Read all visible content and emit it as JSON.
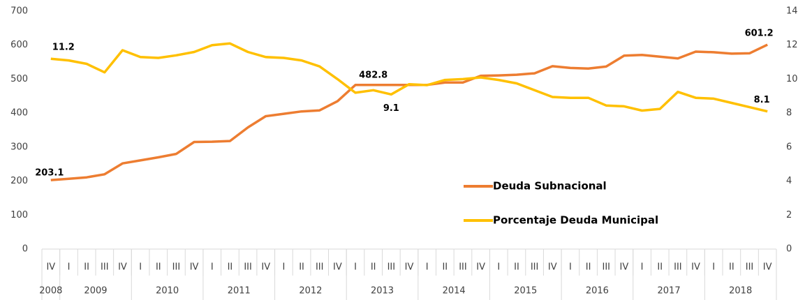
{
  "chart_data": {
    "type": "line",
    "categories": [
      "IV",
      "I",
      "II",
      "III",
      "IV",
      "I",
      "II",
      "III",
      "IV",
      "I",
      "II",
      "III",
      "IV",
      "I",
      "II",
      "III",
      "IV",
      "I",
      "II",
      "III",
      "IV",
      "I",
      "II",
      "III",
      "IV",
      "I",
      "II",
      "III",
      "IV",
      "I",
      "II",
      "III",
      "IV",
      "I",
      "II",
      "III",
      "IV",
      "I",
      "II",
      "III",
      "IV"
    ],
    "category_groups": [
      {
        "label": "2008",
        "size": 1
      },
      {
        "label": "2009",
        "size": 4
      },
      {
        "label": "2010",
        "size": 4
      },
      {
        "label": "2011",
        "size": 4
      },
      {
        "label": "2012",
        "size": 4
      },
      {
        "label": "2013",
        "size": 4
      },
      {
        "label": "2014",
        "size": 4
      },
      {
        "label": "2015",
        "size": 4
      },
      {
        "label": "2016",
        "size": 4
      },
      {
        "label": "2017",
        "size": 4
      },
      {
        "label": "2018",
        "size": 4
      }
    ],
    "series": [
      {
        "name": "Deuda Subnacional",
        "color": "#ed7d31",
        "values": [
          203.1,
          207,
          211,
          220,
          252,
          261,
          270,
          280,
          315,
          316,
          318,
          358,
          391,
          398,
          405,
          408,
          435,
          482.8,
          482.8,
          482.8,
          483,
          483,
          490,
          490,
          510,
          511,
          513,
          517,
          538,
          533,
          531,
          537,
          569,
          571,
          566,
          561,
          581,
          579,
          575,
          576,
          601.2
        ],
        "value_labels": [
          "203.1",
          null,
          null,
          null,
          null,
          null,
          null,
          null,
          null,
          null,
          null,
          null,
          null,
          null,
          null,
          null,
          null,
          null,
          "482.8",
          null,
          null,
          null,
          null,
          null,
          null,
          null,
          null,
          null,
          null,
          null,
          null,
          null,
          null,
          null,
          null,
          null,
          null,
          null,
          null,
          null,
          "601.2"
        ]
      },
      {
        "name": "Porcentaje Deuda Municipal",
        "color": "#ffc000",
        "axis": "y2",
        "values": [
          11.2,
          11.1,
          10.9,
          10.4,
          11.7,
          11.3,
          11.25,
          11.4,
          11.6,
          12.0,
          12.1,
          11.6,
          11.3,
          11.25,
          11.1,
          10.75,
          10.0,
          9.2,
          9.35,
          9.1,
          9.7,
          9.65,
          9.95,
          10.0,
          10.1,
          9.95,
          9.75,
          9.35,
          8.95,
          8.9,
          8.9,
          8.45,
          8.4,
          8.15,
          8.25,
          9.25,
          8.9,
          8.85,
          8.6,
          8.35,
          8.1
        ],
        "value_labels": [
          "11.2",
          null,
          null,
          null,
          null,
          null,
          null,
          null,
          null,
          null,
          null,
          null,
          null,
          null,
          null,
          null,
          null,
          null,
          null,
          "9.1",
          null,
          null,
          null,
          null,
          null,
          null,
          null,
          null,
          null,
          null,
          null,
          null,
          null,
          null,
          null,
          null,
          null,
          null,
          null,
          null,
          "8.1"
        ]
      }
    ],
    "ylim": [
      0,
      700
    ],
    "yticks": [
      0,
      100,
      200,
      300,
      400,
      500,
      600,
      700
    ],
    "y2lim": [
      0,
      14
    ],
    "y2ticks": [
      0,
      2,
      4,
      6,
      8,
      10,
      12,
      14
    ],
    "grid": false
  }
}
